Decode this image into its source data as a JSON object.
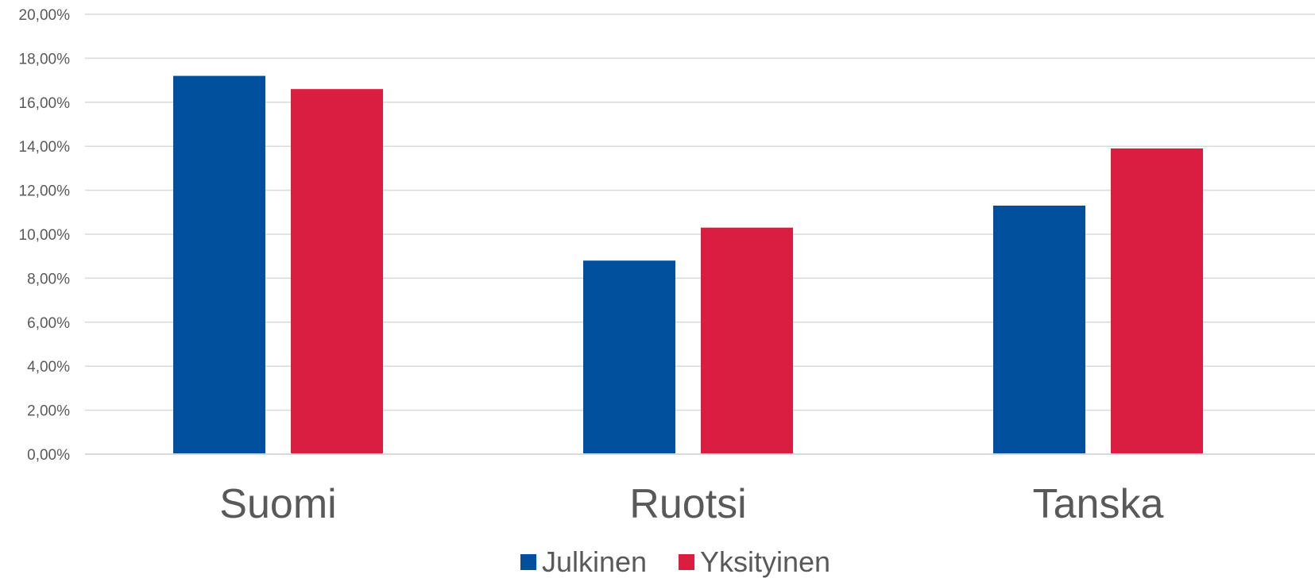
{
  "chart_data": {
    "type": "bar",
    "categories": [
      "Suomi",
      "Ruotsi",
      "Tanska"
    ],
    "series": [
      {
        "name": "Julkinen",
        "color": "#00509e",
        "values": [
          17.2,
          8.8,
          11.3
        ]
      },
      {
        "name": "Yksityinen",
        "color": "#d91e42",
        "values": [
          16.6,
          10.3,
          13.9
        ]
      }
    ],
    "ylim": [
      0,
      20
    ],
    "yticks": [
      0,
      2,
      4,
      6,
      8,
      10,
      12,
      14,
      16,
      18,
      20
    ],
    "ytick_labels": [
      "0,00%",
      "2,00%",
      "4,00%",
      "6,00%",
      "8,00%",
      "10,00%",
      "12,00%",
      "14,00%",
      "16,00%",
      "18,00%",
      "20,00%"
    ],
    "y_unit": "%",
    "grid": true,
    "legend_position": "bottom-center"
  }
}
